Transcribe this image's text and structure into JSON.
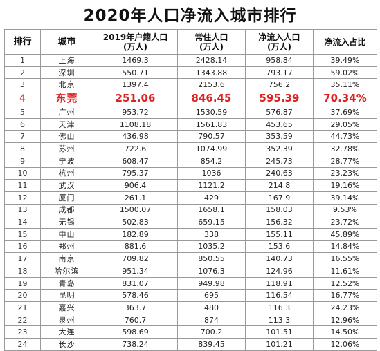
{
  "title": "2020年人口净流入城市排行",
  "header": {
    "rank": "排行",
    "city": "城市",
    "huji_line1": "2019年户籍人口",
    "huji_line2": "(万人)",
    "changzhu_line1": "常住人口",
    "changzhu_line2": "(万人)",
    "jingliuru_line1": "净流入人口",
    "jingliuru_line2": "(万人)",
    "ratio": "净流入占比"
  },
  "colors": {
    "highlight": "#e02020",
    "border": "#9a9a9a"
  },
  "rows": [
    {
      "rank": "1",
      "city": "上海",
      "huji": "1469.3",
      "changzhu": "2428.14",
      "jingliuru": "958.84",
      "ratio": "39.49%"
    },
    {
      "rank": "2",
      "city": "深圳",
      "huji": "550.71",
      "changzhu": "1343.88",
      "jingliuru": "793.17",
      "ratio": "59.02%"
    },
    {
      "rank": "3",
      "city": "北京",
      "huji": "1397.4",
      "changzhu": "2153.6",
      "jingliuru": "756.2",
      "ratio": "35.11%"
    },
    {
      "rank": "4",
      "city": "东莞",
      "huji": "251.06",
      "changzhu": "846.45",
      "jingliuru": "595.39",
      "ratio": "70.34%",
      "highlight": true
    },
    {
      "rank": "5",
      "city": "广州",
      "huji": "953.72",
      "changzhu": "1530.59",
      "jingliuru": "576.87",
      "ratio": "37.69%"
    },
    {
      "rank": "6",
      "city": "天津",
      "huji": "1108.18",
      "changzhu": "1561.83",
      "jingliuru": "453.65",
      "ratio": "29.05%"
    },
    {
      "rank": "7",
      "city": "佛山",
      "huji": "436.98",
      "changzhu": "790.57",
      "jingliuru": "353.59",
      "ratio": "44.73%"
    },
    {
      "rank": "8",
      "city": "苏州",
      "huji": "722.6",
      "changzhu": "1074.99",
      "jingliuru": "352.39",
      "ratio": "32.78%"
    },
    {
      "rank": "9",
      "city": "宁波",
      "huji": "608.47",
      "changzhu": "854.2",
      "jingliuru": "245.73",
      "ratio": "28.77%"
    },
    {
      "rank": "10",
      "city": "杭州",
      "huji": "795.37",
      "changzhu": "1036",
      "jingliuru": "240.63",
      "ratio": "23.23%"
    },
    {
      "rank": "11",
      "city": "武汉",
      "huji": "906.4",
      "changzhu": "1121.2",
      "jingliuru": "214.8",
      "ratio": "19.16%"
    },
    {
      "rank": "12",
      "city": "厦门",
      "huji": "261.1",
      "changzhu": "429",
      "jingliuru": "167.9",
      "ratio": "39.14%"
    },
    {
      "rank": "13",
      "city": "成都",
      "huji": "1500.07",
      "changzhu": "1658.1",
      "jingliuru": "158.03",
      "ratio": "9.53%"
    },
    {
      "rank": "14",
      "city": "无锡",
      "huji": "502.83",
      "changzhu": "659.15",
      "jingliuru": "156.32",
      "ratio": "23.72%"
    },
    {
      "rank": "15",
      "city": "中山",
      "huji": "182.89",
      "changzhu": "338",
      "jingliuru": "155.11",
      "ratio": "45.89%"
    },
    {
      "rank": "16",
      "city": "郑州",
      "huji": "881.6",
      "changzhu": "1035.2",
      "jingliuru": "153.6",
      "ratio": "14.84%"
    },
    {
      "rank": "17",
      "city": "南京",
      "huji": "709.82",
      "changzhu": "850.55",
      "jingliuru": "140.73",
      "ratio": "16.55%"
    },
    {
      "rank": "18",
      "city": "哈尔滨",
      "huji": "951.34",
      "changzhu": "1076.3",
      "jingliuru": "124.96",
      "ratio": "11.61%"
    },
    {
      "rank": "19",
      "city": "青岛",
      "huji": "831.07",
      "changzhu": "949.98",
      "jingliuru": "118.91",
      "ratio": "12.52%"
    },
    {
      "rank": "20",
      "city": "昆明",
      "huji": "578.46",
      "changzhu": "695",
      "jingliuru": "116.54",
      "ratio": "16.77%"
    },
    {
      "rank": "21",
      "city": "嘉兴",
      "huji": "363.7",
      "changzhu": "480",
      "jingliuru": "116.3",
      "ratio": "24.23%"
    },
    {
      "rank": "22",
      "city": "泉州",
      "huji": "760.7",
      "changzhu": "874",
      "jingliuru": "113.3",
      "ratio": "12.96%"
    },
    {
      "rank": "23",
      "city": "大连",
      "huji": "598.69",
      "changzhu": "700.2",
      "jingliuru": "101.51",
      "ratio": "14.50%"
    },
    {
      "rank": "24",
      "city": "长沙",
      "huji": "738.24",
      "changzhu": "839.45",
      "jingliuru": "101.21",
      "ratio": "12.06%"
    }
  ]
}
